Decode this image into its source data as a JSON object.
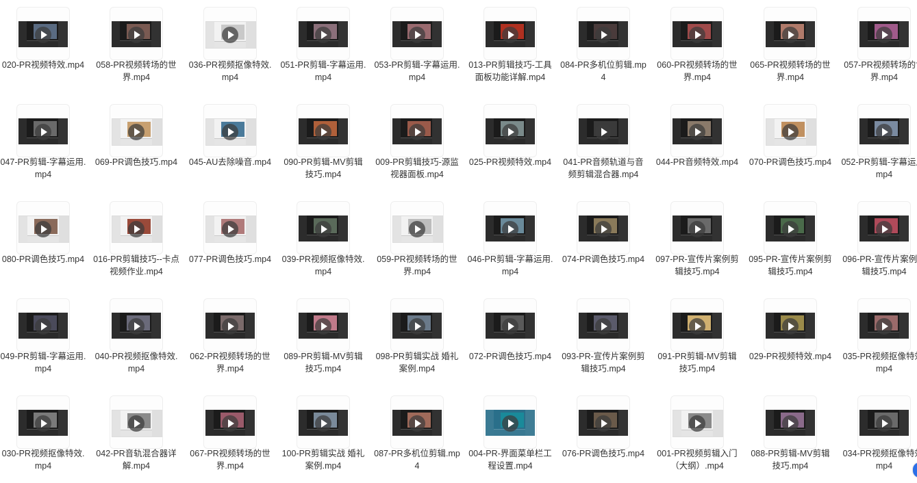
{
  "files": [
    {
      "name": "020-PR视频特效.mp4",
      "icon": "video-thumbnail-icon",
      "theme": "dark",
      "accent": "#5a6b82"
    },
    {
      "name": "058-PR视频转场的世界.mp4",
      "icon": "video-thumbnail-icon",
      "theme": "dark",
      "accent": "#7a5a52"
    },
    {
      "name": "036-PR视频抠像特效.mp4",
      "icon": "video-thumbnail-icon",
      "theme": "light",
      "accent": "#c9c9c9"
    },
    {
      "name": "051-PR剪辑-字幕运用.mp4",
      "icon": "video-thumbnail-icon",
      "theme": "dark",
      "accent": "#8b6f7a"
    },
    {
      "name": "053-PR剪辑-字幕运用.mp4",
      "icon": "video-thumbnail-icon",
      "theme": "dark",
      "accent": "#9a6a6f"
    },
    {
      "name": "013-PR剪辑技巧-工具面板功能详解.mp4",
      "icon": "video-thumbnail-icon",
      "theme": "dark",
      "accent": "#b03020"
    },
    {
      "name": "084-PR多机位剪辑.mp4",
      "icon": "video-thumbnail-icon",
      "theme": "dark",
      "accent": "#4a3b3b"
    },
    {
      "name": "060-PR视频转场的世界.mp4",
      "icon": "video-thumbnail-icon",
      "theme": "dark",
      "accent": "#a04a4a"
    },
    {
      "name": "065-PR视频转场的世界.mp4",
      "icon": "video-thumbnail-icon",
      "theme": "dark",
      "accent": "#b07a6a"
    },
    {
      "name": "057-PR视频转场的世界.mp4",
      "icon": "video-thumbnail-icon",
      "theme": "dark",
      "accent": "#a05a8a"
    },
    {
      "name": "047-PR剪辑-字幕运用.mp4",
      "icon": "video-thumbnail-icon",
      "theme": "dark",
      "accent": "#6a6a6a"
    },
    {
      "name": "069-PR调色技巧.mp4",
      "icon": "video-thumbnail-icon",
      "theme": "light",
      "accent": "#c8a070"
    },
    {
      "name": "045-AU去除噪音.mp4",
      "icon": "video-thumbnail-icon",
      "theme": "light",
      "accent": "#4a7a9a"
    },
    {
      "name": "090-PR剪辑-MV剪辑技巧.mp4",
      "icon": "video-thumbnail-icon",
      "theme": "dark",
      "accent": "#b0603a"
    },
    {
      "name": "009-PR剪辑技巧-源监视器面板.mp4",
      "icon": "video-thumbnail-icon",
      "theme": "dark",
      "accent": "#9a5a4a"
    },
    {
      "name": "025-PR视频特效.mp4",
      "icon": "video-thumbnail-icon",
      "theme": "dark",
      "accent": "#7a8a8a"
    },
    {
      "name": "041-PR音频轨道与音频剪辑混合器.mp4",
      "icon": "video-thumbnail-icon",
      "theme": "dark",
      "accent": "#3a3a3a"
    },
    {
      "name": "044-PR音频特效.mp4",
      "icon": "video-thumbnail-icon",
      "theme": "dark",
      "accent": "#8a7a6a"
    },
    {
      "name": "070-PR调色技巧.mp4",
      "icon": "video-thumbnail-icon",
      "theme": "light",
      "accent": "#c09060"
    },
    {
      "name": "052-PR剪辑-字幕运用.mp4",
      "icon": "video-thumbnail-icon",
      "theme": "dark",
      "accent": "#7a8aa0"
    },
    {
      "name": "080-PR调色技巧.mp4",
      "icon": "video-thumbnail-icon",
      "theme": "light",
      "accent": "#8a6a5a"
    },
    {
      "name": "016-PR剪辑技巧--卡点视频作业.mp4",
      "icon": "video-thumbnail-icon",
      "theme": "light",
      "accent": "#9a4a3a"
    },
    {
      "name": "077-PR调色技巧.mp4",
      "icon": "video-thumbnail-icon",
      "theme": "light",
      "accent": "#b07a7a"
    },
    {
      "name": "039-PR视频抠像特效.mp4",
      "icon": "video-thumbnail-icon",
      "theme": "dark",
      "accent": "#5a6a5a"
    },
    {
      "name": "059-PR视频转场的世界.mp4",
      "icon": "video-thumbnail-icon",
      "theme": "light",
      "accent": "#bdbdbd"
    },
    {
      "name": "046-PR剪辑-字幕运用.mp4",
      "icon": "video-thumbnail-icon",
      "theme": "dark",
      "accent": "#6a8a9a"
    },
    {
      "name": "074-PR调色技巧.mp4",
      "icon": "video-thumbnail-icon",
      "theme": "dark",
      "accent": "#8a7a5a"
    },
    {
      "name": "097-PR-宣传片案例剪辑技巧.mp4",
      "icon": "video-thumbnail-icon",
      "theme": "dark",
      "accent": "#6a6a6a"
    },
    {
      "name": "095-PR-宣传片案例剪辑技巧.mp4",
      "icon": "video-thumbnail-icon",
      "theme": "dark",
      "accent": "#4a6a4a"
    },
    {
      "name": "096-PR-宣传片案例剪辑技巧.mp4",
      "icon": "video-thumbnail-icon",
      "theme": "dark",
      "accent": "#b04a5a"
    },
    {
      "name": "049-PR剪辑-字幕运用.mp4",
      "icon": "video-thumbnail-icon",
      "theme": "dark",
      "accent": "#4a4a5a"
    },
    {
      "name": "040-PR视频抠像特效.mp4",
      "icon": "video-thumbnail-icon",
      "theme": "dark",
      "accent": "#6a6a7a"
    },
    {
      "name": "062-PR视频转场的世界.mp4",
      "icon": "video-thumbnail-icon",
      "theme": "dark",
      "accent": "#7a6a6a"
    },
    {
      "name": "089-PR剪辑-MV剪辑技巧.mp4",
      "icon": "video-thumbnail-icon",
      "theme": "dark",
      "accent": "#c07a8a"
    },
    {
      "name": "098-PR剪辑实战 婚礼案例.mp4",
      "icon": "video-thumbnail-icon",
      "theme": "dark",
      "accent": "#6a7a8a"
    },
    {
      "name": "072-PR调色技巧.mp4",
      "icon": "video-thumbnail-icon",
      "theme": "dark",
      "accent": "#5a5a5a"
    },
    {
      "name": "093-PR-宣传片案例剪辑技巧.mp4",
      "icon": "video-thumbnail-icon",
      "theme": "dark",
      "accent": "#5a5a6a"
    },
    {
      "name": "091-PR剪辑-MV剪辑技巧.mp4",
      "icon": "video-thumbnail-icon",
      "theme": "dark",
      "accent": "#d0b070"
    },
    {
      "name": "029-PR视频特效.mp4",
      "icon": "video-thumbnail-icon",
      "theme": "dark",
      "accent": "#9a8a4a"
    },
    {
      "name": "035-PR视频抠像特效.mp4",
      "icon": "video-thumbnail-icon",
      "theme": "dark",
      "accent": "#9a6a6a"
    },
    {
      "name": "030-PR视频抠像特效.mp4",
      "icon": "video-thumbnail-icon",
      "theme": "dark",
      "accent": "#7a7a7a"
    },
    {
      "name": "042-PR音轨混合器详解.mp4",
      "icon": "video-thumbnail-icon",
      "theme": "light",
      "accent": "#8a8a8a"
    },
    {
      "name": "067-PR视频转场的世界.mp4",
      "icon": "video-thumbnail-icon",
      "theme": "dark",
      "accent": "#9a5a6a"
    },
    {
      "name": "100-PR剪辑实战 婚礼案例.mp4",
      "icon": "video-thumbnail-icon",
      "theme": "dark",
      "accent": "#7a8a9a"
    },
    {
      "name": "087-PR多机位剪辑.mp4",
      "icon": "video-thumbnail-icon",
      "theme": "dark",
      "accent": "#a06a5a"
    },
    {
      "name": "004-PR-界面菜单栏工程设置.mp4",
      "icon": "video-thumbnail-icon",
      "theme": "desktop",
      "accent": "#1a8a9a"
    },
    {
      "name": "076-PR调色技巧.mp4",
      "icon": "video-thumbnail-icon",
      "theme": "dark",
      "accent": "#6a5a4a"
    },
    {
      "name": "001-PR视频剪辑入门（大纲）.mp4",
      "icon": "video-thumbnail-icon",
      "theme": "light",
      "accent": "#8a8a8a"
    },
    {
      "name": "088-PR剪辑-MV剪辑技巧.mp4",
      "icon": "video-thumbnail-icon",
      "theme": "dark",
      "accent": "#8a6a8a"
    },
    {
      "name": "034-PR视频抠像特效.mp4",
      "icon": "video-thumbnail-icon",
      "theme": "dark",
      "accent": "#6a6a6a"
    }
  ]
}
